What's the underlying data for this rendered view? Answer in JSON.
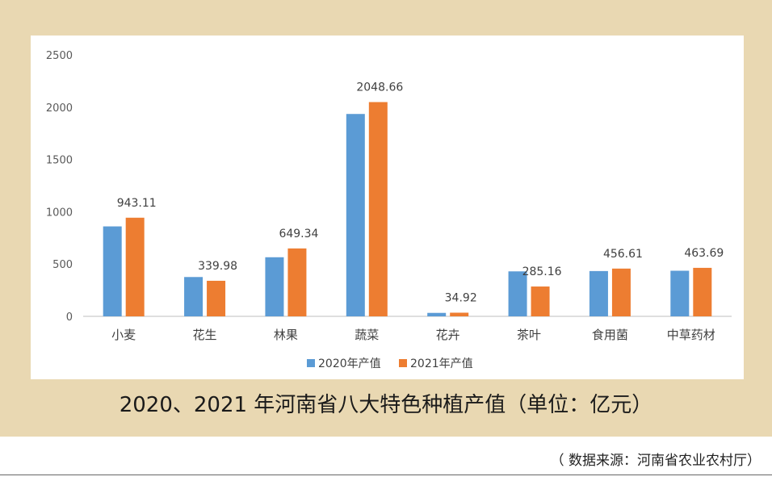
{
  "caption": "2020、2021 年河南省八大特色种植产值（单位：亿元）",
  "source": "（ 数据来源：河南省农业农村厅）",
  "colors": {
    "frame": "#e9d8b2",
    "series_2020": "#5b9bd5",
    "series_2021": "#ed7d31",
    "axis": "#bfbfbf"
  },
  "chart_data": {
    "type": "bar",
    "categories": [
      "小麦",
      "花生",
      "林果",
      "蔬菜",
      "花卉",
      "茶叶",
      "食用菌",
      "中草药材"
    ],
    "series": [
      {
        "name": "2020年产值",
        "values": [
          860,
          376,
          565,
          1935,
          33,
          430,
          433,
          436
        ],
        "labels": [
          "",
          "",
          "",
          "",
          "",
          "",
          "",
          ""
        ]
      },
      {
        "name": "2021年产值",
        "values": [
          943.11,
          339.98,
          649.34,
          2048.66,
          34.92,
          285.16,
          456.61,
          463.69
        ],
        "labels": [
          "943.11",
          "339.98",
          "649.34",
          "2048.66",
          "34.92",
          "285.16",
          "456.61",
          "463.69"
        ]
      }
    ],
    "ylim": [
      0,
      2500
    ],
    "yticks": [
      "0",
      "500",
      "1000",
      "1500",
      "2000",
      "2500"
    ],
    "grid": false,
    "legend_position": "bottom"
  }
}
